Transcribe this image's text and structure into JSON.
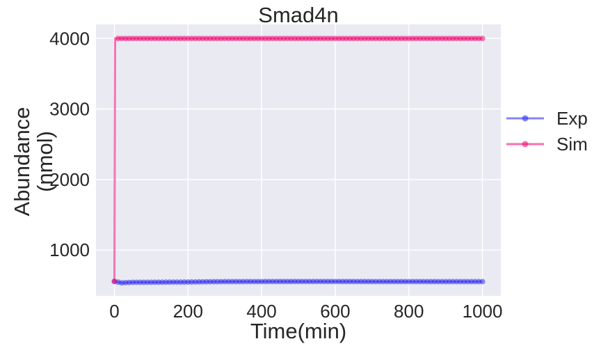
{
  "chart_data": {
    "type": "line",
    "title": "Smad4n",
    "xlabel": "Time(min)",
    "ylabel_lines": [
      "Abundance",
      "(nmol)"
    ],
    "xlim": [
      -50,
      1050
    ],
    "ylim": [
      350,
      4200
    ],
    "x_ticks": [
      0,
      200,
      400,
      600,
      800,
      1000
    ],
    "y_ticks": [
      1000,
      2000,
      3000,
      4000
    ],
    "grid": true,
    "legend_position": "outside-right",
    "series": [
      {
        "name": "Exp",
        "color": "#3333ee",
        "marker": "circle",
        "points": [
          [
            0,
            555
          ],
          [
            10,
            545
          ],
          [
            20,
            535
          ],
          [
            30,
            538
          ],
          [
            40,
            540
          ],
          [
            50,
            542
          ],
          [
            100,
            543
          ],
          [
            150,
            545
          ],
          [
            200,
            546
          ],
          [
            250,
            550
          ],
          [
            300,
            552
          ],
          [
            400,
            553
          ],
          [
            500,
            554
          ],
          [
            600,
            554
          ],
          [
            700,
            553
          ],
          [
            800,
            553
          ],
          [
            900,
            552
          ],
          [
            1000,
            552
          ]
        ]
      },
      {
        "name": "Sim",
        "color": "#ee1177",
        "marker": "circle",
        "points": [
          [
            0,
            555
          ],
          [
            2,
            4000
          ],
          [
            100,
            4000
          ],
          [
            200,
            4000
          ],
          [
            300,
            4000
          ],
          [
            400,
            4000
          ],
          [
            500,
            4000
          ],
          [
            600,
            4000
          ],
          [
            700,
            4000
          ],
          [
            800,
            4000
          ],
          [
            900,
            4000
          ],
          [
            1000,
            4000
          ]
        ]
      }
    ]
  }
}
